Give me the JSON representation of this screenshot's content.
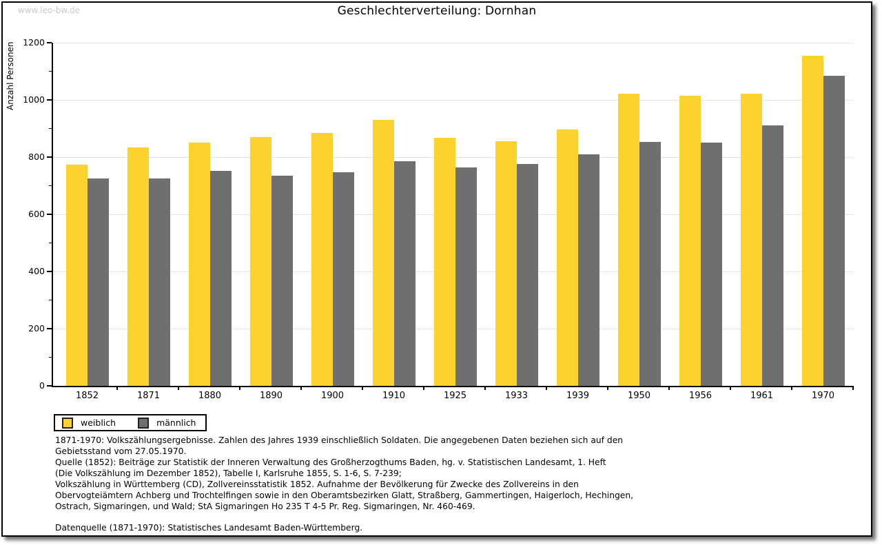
{
  "watermark": "www.leo-bw.de",
  "header": {
    "title": "Geschlechterverteilung: Dornhan"
  },
  "chart_data": {
    "type": "bar",
    "title": "Geschlechterverteilung: Dornhan",
    "xlabel": "",
    "ylabel": "Anzahl Personen",
    "ylim": [
      0,
      1200
    ],
    "yticks": [
      0,
      200,
      400,
      600,
      800,
      1000,
      1200
    ],
    "minor_tick_step": 100,
    "grid": true,
    "legend_position": "bottom-left",
    "categories": [
      "1852",
      "1871",
      "1880",
      "1890",
      "1900",
      "1910",
      "1925",
      "1933",
      "1939",
      "1950",
      "1956",
      "1961",
      "1970"
    ],
    "series": [
      {
        "name": "weiblich",
        "color": "#fbd32e",
        "values": [
          773,
          833,
          851,
          871,
          884,
          930,
          867,
          856,
          897,
          1022,
          1015,
          1022,
          1155
        ]
      },
      {
        "name": "männlich",
        "color": "#6f6f6f",
        "values": [
          726,
          726,
          753,
          736,
          746,
          785,
          763,
          775,
          809,
          854,
          851,
          911,
          1084
        ]
      }
    ]
  },
  "legend": {
    "items": [
      {
        "label": "weiblich",
        "color": "#fbd32e"
      },
      {
        "label": "männlich",
        "color": "#6f6f6f"
      }
    ]
  },
  "footnotes": {
    "lines": [
      "1871-1970: Volkszählungsergebnisse. Zahlen des Jahres 1939 einschließlich Soldaten. Die angegebenen Daten beziehen sich auf den",
      "Gebietsstand vom 27.05.1970.",
      "Quelle (1852): Beiträge zur Statistik der Inneren Verwaltung des Großherzogthums Baden, hg. v. Statistischen Landesamt, 1. Heft",
      "(Die Volkszählung im Dezember 1852), Tabelle I, Karlsruhe 1855, S. 1-6, S. 7-239;",
      "Volkszählung in Württemberg (CD), Zollvereinsstatistik 1852. Aufnahme der Bevölkerung für Zwecke des Zollvereins in den",
      "Obervogteiämtern Achberg und Trochtelfingen sowie in den Oberamtsbezirken Glatt, Straßberg, Gammertingen, Haigerloch, Hechingen,",
      "Ostrach, Sigmaringen, und Wald; StA Sigmaringen Ho 235 T 4-5 Pr. Reg. Sigmaringen, Nr. 460-469."
    ],
    "datasource": "Datenquelle (1871-1970): Statistisches Landesamt Baden-Württemberg."
  },
  "colors": {
    "weiblich": "#fbd32e",
    "männlich": "#6f6f6f",
    "gridline": "#e4e4e4",
    "watermark": "#c9c9c9",
    "frame_border": "#000000"
  }
}
